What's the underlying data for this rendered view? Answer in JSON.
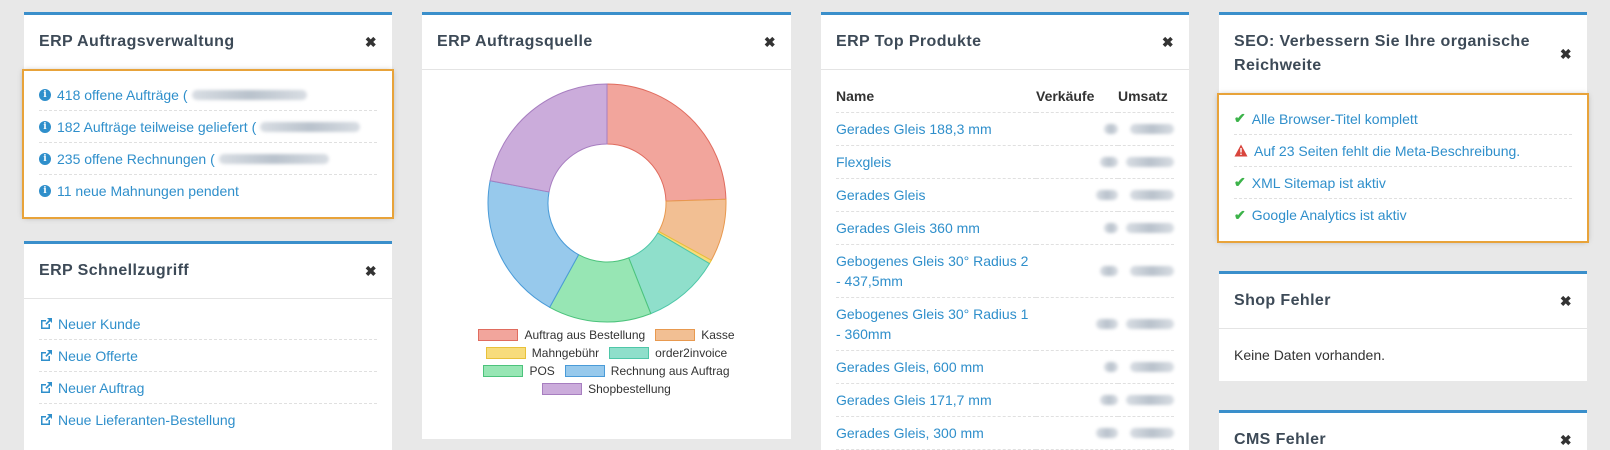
{
  "erp_orders": {
    "title": "ERP Auftragsverwaltung",
    "items": [
      {
        "text": "418 offene Aufträge ("
      },
      {
        "text": "182 Aufträge teilweise geliefert ("
      },
      {
        "text": "235 offene Rechnungen ("
      },
      {
        "text": "11 neue Mahnungen pendent"
      }
    ]
  },
  "erp_quick": {
    "title": "ERP Schnellzugriff",
    "items": [
      "Neuer Kunde",
      "Neue Offerte",
      "Neuer Auftrag",
      "Neue Lieferanten-Bestellung"
    ]
  },
  "erp_source": {
    "title": "ERP Auftragsquelle",
    "legend": [
      "Auftrag aus Bestellung",
      "Kasse",
      "Mahngebühr",
      "order2invoice",
      "POS",
      "Rechnung aus Auftrag",
      "Shopbestellung"
    ]
  },
  "chart_data": {
    "type": "pie",
    "donut": true,
    "categories": [
      "Auftrag aus Bestellung",
      "Kasse",
      "Mahngebühr",
      "order2invoice",
      "POS",
      "Rechnung aus Auftrag",
      "Shopbestellung"
    ],
    "values": [
      24.5,
      8.5,
      0.5,
      10.5,
      14,
      20,
      22
    ],
    "colors": [
      "#f2a59c",
      "#f2bf93",
      "#f7dc7c",
      "#8fdfcb",
      "#97e6b4",
      "#97c9ec",
      "#cbacdb"
    ],
    "borders": [
      "#e06c5f",
      "#e8994f",
      "#e8c13a",
      "#4ec7a8",
      "#4cc37c",
      "#4a9bd8",
      "#a77ec0"
    ]
  },
  "erp_top": {
    "title": "ERP Top Produkte",
    "columns": [
      "Name",
      "Verkäufe",
      "Umsatz"
    ],
    "rows": [
      "Gerades Gleis 188,3 mm",
      "Flexgleis",
      "Gerades Gleis",
      "Gerades Gleis 360 mm",
      "Gebogenes Gleis 30° Radius 2 - 437,5mm",
      "Gebogenes Gleis 30° Radius 1 - 360mm",
      "Gerades Gleis, 600 mm",
      "Gerades Gleis 171,7 mm",
      "Gerades Gleis, 300 mm"
    ]
  },
  "seo": {
    "title": "SEO: Verbessern Sie Ihre organische Reichweite",
    "items": [
      {
        "status": "ok",
        "text": "Alle Browser-Titel komplett"
      },
      {
        "status": "warn",
        "text": "Auf 23 Seiten fehlt die Meta-Beschreibung."
      },
      {
        "status": "ok",
        "text": "XML Sitemap ist aktiv"
      },
      {
        "status": "ok",
        "text": "Google Analytics ist aktiv"
      }
    ]
  },
  "shop_errors": {
    "title": "Shop Fehler",
    "text": "Keine Daten vorhanden."
  },
  "cms_errors": {
    "title": "CMS Fehler"
  },
  "close_glyph": "✖"
}
